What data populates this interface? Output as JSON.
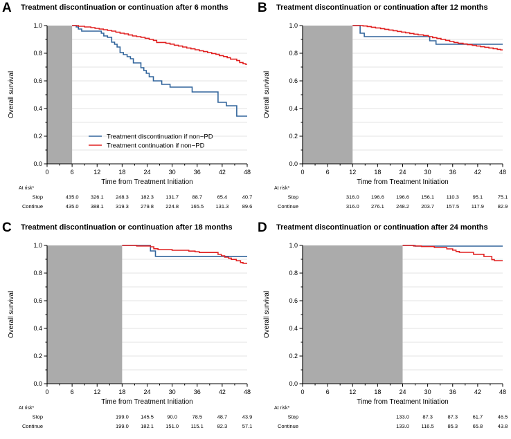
{
  "figure": {
    "kind": "kaplan-meier-landmark-analysis",
    "panels": 4
  },
  "style": {
    "band_color": "#ababab",
    "grid_color": "#e3e3e3",
    "axis_color": "#000000",
    "series_colors": {
      "stop": "#30649b",
      "continue": "#e02020"
    }
  },
  "chart_data": [
    {
      "type": "line",
      "letter": "A",
      "title": "Treatment discontinuation or continuation after 6 months",
      "xlabel": "Time from Treatment Initiation",
      "ylabel": "Overall survival",
      "xlim": [
        0,
        48
      ],
      "ylim": [
        0.0,
        1.0
      ],
      "xticks": [
        0,
        6,
        12,
        18,
        24,
        30,
        36,
        42,
        48
      ],
      "yticks": [
        0.0,
        0.2,
        0.4,
        0.6,
        0.8,
        1.0
      ],
      "grid": "horizontal-0.1",
      "landmark_months": 6,
      "shaded_region": [
        0,
        6
      ],
      "legend": {
        "position": "inside-lower-left",
        "entries": [
          {
            "label": "Treatment discontinuation if non−PD",
            "color": "stop"
          },
          {
            "label": "Treatment continuation if non−PD",
            "color": "continue"
          }
        ]
      },
      "series": [
        {
          "name": "Stop",
          "color": "stop",
          "steps": [
            [
              6,
              1.0
            ],
            [
              7,
              0.99
            ],
            [
              7.5,
              0.975
            ],
            [
              8.3,
              0.96
            ],
            [
              13,
              0.945
            ],
            [
              13.6,
              0.925
            ],
            [
              14.5,
              0.915
            ],
            [
              15.5,
              0.88
            ],
            [
              16.2,
              0.865
            ],
            [
              16.8,
              0.845
            ],
            [
              17.5,
              0.805
            ],
            [
              18.3,
              0.79
            ],
            [
              19.2,
              0.775
            ],
            [
              20,
              0.76
            ],
            [
              20.7,
              0.73
            ],
            [
              22.5,
              0.695
            ],
            [
              23.2,
              0.675
            ],
            [
              23.8,
              0.655
            ],
            [
              24.5,
              0.63
            ],
            [
              25.5,
              0.6
            ],
            [
              27.5,
              0.575
            ],
            [
              29.5,
              0.555
            ],
            [
              34.8,
              0.52
            ],
            [
              41,
              0.445
            ],
            [
              43,
              0.42
            ],
            [
              45.5,
              0.345
            ]
          ]
        },
        {
          "name": "Continue",
          "color": "continue",
          "steps": [
            [
              6,
              1.0
            ],
            [
              7.5,
              0.995
            ],
            [
              9,
              0.99
            ],
            [
              10.5,
              0.985
            ],
            [
              11.5,
              0.98
            ],
            [
              12.5,
              0.975
            ],
            [
              13.5,
              0.97
            ],
            [
              14.5,
              0.965
            ],
            [
              15.5,
              0.96
            ],
            [
              16.5,
              0.952
            ],
            [
              17.5,
              0.945
            ],
            [
              18.5,
              0.94
            ],
            [
              19.5,
              0.932
            ],
            [
              20.5,
              0.925
            ],
            [
              21.5,
              0.92
            ],
            [
              22.5,
              0.915
            ],
            [
              23.5,
              0.908
            ],
            [
              24.5,
              0.9
            ],
            [
              25.5,
              0.893
            ],
            [
              26.3,
              0.878
            ],
            [
              28.5,
              0.872
            ],
            [
              29.5,
              0.866
            ],
            [
              30.5,
              0.858
            ],
            [
              31.5,
              0.852
            ],
            [
              32.5,
              0.845
            ],
            [
              33.5,
              0.838
            ],
            [
              34.5,
              0.832
            ],
            [
              35.5,
              0.825
            ],
            [
              36.5,
              0.818
            ],
            [
              37.5,
              0.812
            ],
            [
              38.5,
              0.805
            ],
            [
              39.5,
              0.798
            ],
            [
              40.5,
              0.792
            ],
            [
              41.3,
              0.783
            ],
            [
              42.3,
              0.776
            ],
            [
              43.2,
              0.768
            ],
            [
              44,
              0.757
            ],
            [
              45.5,
              0.747
            ],
            [
              46.2,
              0.733
            ],
            [
              47,
              0.724
            ],
            [
              47.6,
              0.72
            ]
          ]
        }
      ],
      "at_risk": {
        "label": "At risk*",
        "first_tick": 6,
        "rows": [
          {
            "label": "Stop",
            "values": [
              "435.0",
              "326.1",
              "248.3",
              "182.3",
              "131.7",
              "88.7",
              "65.4",
              "40.7"
            ]
          },
          {
            "label": "Continue",
            "values": [
              "435.0",
              "388.1",
              "319.3",
              "279.8",
              "224.8",
              "165.5",
              "131.3",
              "89.6"
            ]
          }
        ]
      }
    },
    {
      "type": "line",
      "letter": "B",
      "title": "Treatment discontinuation or continuation after 12 months",
      "xlabel": "Time from Treatment Initiation",
      "ylabel": "Overall survival",
      "xlim": [
        0,
        48
      ],
      "ylim": [
        0.0,
        1.0
      ],
      "xticks": [
        0,
        6,
        12,
        18,
        24,
        30,
        36,
        42,
        48
      ],
      "yticks": [
        0.0,
        0.2,
        0.4,
        0.6,
        0.8,
        1.0
      ],
      "grid": "horizontal-0.1",
      "landmark_months": 12,
      "shaded_region": [
        0,
        12
      ],
      "series": [
        {
          "name": "Stop",
          "color": "stop",
          "steps": [
            [
              12,
              1.0
            ],
            [
              13.8,
              0.945
            ],
            [
              14.8,
              0.92
            ],
            [
              30.5,
              0.89
            ],
            [
              32,
              0.865
            ]
          ]
        },
        {
          "name": "Continue",
          "color": "continue",
          "steps": [
            [
              12,
              1.0
            ],
            [
              14.5,
              0.997
            ],
            [
              15.5,
              0.993
            ],
            [
              16.5,
              0.988
            ],
            [
              17.5,
              0.983
            ],
            [
              18.7,
              0.978
            ],
            [
              19.7,
              0.973
            ],
            [
              20.7,
              0.968
            ],
            [
              21.7,
              0.963
            ],
            [
              22.7,
              0.958
            ],
            [
              23.7,
              0.953
            ],
            [
              24.7,
              0.948
            ],
            [
              25.7,
              0.943
            ],
            [
              26.7,
              0.938
            ],
            [
              27.7,
              0.933
            ],
            [
              29,
              0.928
            ],
            [
              30.2,
              0.92
            ],
            [
              31.2,
              0.913
            ],
            [
              32.2,
              0.907
            ],
            [
              33.2,
              0.9
            ],
            [
              34.3,
              0.893
            ],
            [
              35.3,
              0.885
            ],
            [
              36.3,
              0.878
            ],
            [
              37.3,
              0.872
            ],
            [
              38.5,
              0.867
            ],
            [
              39.5,
              0.862
            ],
            [
              40.7,
              0.857
            ],
            [
              41.7,
              0.852
            ],
            [
              42.7,
              0.847
            ],
            [
              43.7,
              0.843
            ],
            [
              44.7,
              0.838
            ],
            [
              45.7,
              0.833
            ],
            [
              46.7,
              0.828
            ],
            [
              47.5,
              0.824
            ]
          ]
        }
      ],
      "at_risk": {
        "label": "At risk*",
        "first_tick": 12,
        "rows": [
          {
            "label": "Stop",
            "values": [
              "316.0",
              "196.6",
              "196.6",
              "156.1",
              "110.3",
              "95.1",
              "75.1"
            ]
          },
          {
            "label": "Continue",
            "values": [
              "316.0",
              "276.1",
              "248.2",
              "203.7",
              "157.5",
              "117.9",
              "82.9"
            ]
          }
        ]
      }
    },
    {
      "type": "line",
      "letter": "C",
      "title": "Treatment discontinuation or continuation after 18 months",
      "xlabel": "Time from Treatment Initiation",
      "ylabel": "Overall survival",
      "xlim": [
        0,
        48
      ],
      "ylim": [
        0.0,
        1.0
      ],
      "xticks": [
        0,
        6,
        12,
        18,
        24,
        30,
        36,
        42,
        48
      ],
      "yticks": [
        0.0,
        0.2,
        0.4,
        0.6,
        0.8,
        1.0
      ],
      "grid": "horizontal-0.1",
      "landmark_months": 18,
      "shaded_region": [
        0,
        18
      ],
      "series": [
        {
          "name": "Stop",
          "color": "stop",
          "steps": [
            [
              18,
              1.0
            ],
            [
              24.8,
              0.96
            ],
            [
              26,
              0.921
            ]
          ]
        },
        {
          "name": "Continue",
          "color": "continue",
          "steps": [
            [
              18,
              1.0
            ],
            [
              21.5,
              0.996
            ],
            [
              24.8,
              0.99
            ],
            [
              25.6,
              0.976
            ],
            [
              26.6,
              0.97
            ],
            [
              30,
              0.965
            ],
            [
              34,
              0.959
            ],
            [
              35.5,
              0.954
            ],
            [
              36.5,
              0.949
            ],
            [
              41,
              0.935
            ],
            [
              41.8,
              0.925
            ],
            [
              42.6,
              0.915
            ],
            [
              43.5,
              0.908
            ],
            [
              44.2,
              0.899
            ],
            [
              45.4,
              0.889
            ],
            [
              46.4,
              0.876
            ],
            [
              47,
              0.871
            ]
          ]
        }
      ],
      "at_risk": {
        "label": "At risk*",
        "first_tick": 18,
        "rows": [
          {
            "label": "Stop",
            "values": [
              "199.0",
              "145.5",
              "90.0",
              "78.5",
              "48.7",
              "43.9"
            ]
          },
          {
            "label": "Continue",
            "values": [
              "199.0",
              "182.1",
              "151.0",
              "115.1",
              "82.3",
              "57.1"
            ]
          }
        ]
      }
    },
    {
      "type": "line",
      "letter": "D",
      "title": "Treatment discontinuation or continuation after 24 months",
      "xlabel": "Time from Treatment Initiation",
      "ylabel": "Overall survival",
      "xlim": [
        0,
        48
      ],
      "ylim": [
        0.0,
        1.0
      ],
      "xticks": [
        0,
        6,
        12,
        18,
        24,
        30,
        36,
        42,
        48
      ],
      "yticks": [
        0.0,
        0.2,
        0.4,
        0.6,
        0.8,
        1.0
      ],
      "grid": "horizontal-0.1",
      "landmark_months": 24,
      "shaded_region": [
        0,
        24
      ],
      "series": [
        {
          "name": "Stop",
          "color": "stop",
          "steps": [
            [
              24,
              1.0
            ],
            [
              27,
              0.995
            ]
          ]
        },
        {
          "name": "Continue",
          "color": "continue",
          "steps": [
            [
              24,
              1.0
            ],
            [
              26.6,
              0.996
            ],
            [
              28.5,
              0.992
            ],
            [
              31.6,
              0.985
            ],
            [
              34.6,
              0.975
            ],
            [
              36,
              0.966
            ],
            [
              36.8,
              0.956
            ],
            [
              37.6,
              0.95
            ],
            [
              41,
              0.936
            ],
            [
              43.5,
              0.92
            ],
            [
              45.4,
              0.897
            ],
            [
              46,
              0.89
            ]
          ]
        }
      ],
      "at_risk": {
        "label": "At risk*",
        "first_tick": 24,
        "rows": [
          {
            "label": "Stop",
            "values": [
              "133.0",
              "87.3",
              "87.3",
              "61.7",
              "46.5"
            ]
          },
          {
            "label": "Continue",
            "values": [
              "133.0",
              "116.5",
              "85.3",
              "65.8",
              "43.8"
            ]
          }
        ]
      }
    }
  ]
}
